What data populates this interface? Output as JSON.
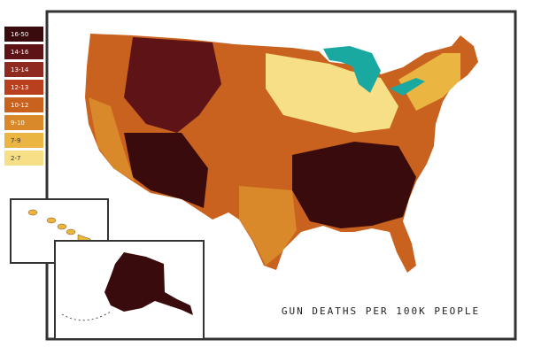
{
  "title": "GUN DEATHS PER 100K PEOPLE",
  "legend": [
    {
      "label": "16-50",
      "color": "#3a0b0c"
    },
    {
      "label": "14-16",
      "color": "#5e1416"
    },
    {
      "label": "13-14",
      "color": "#8e2a1f"
    },
    {
      "label": "12-13",
      "color": "#b8401f"
    },
    {
      "label": "10-12",
      "color": "#c9621f"
    },
    {
      "label": "9-10",
      "color": "#d9892a"
    },
    {
      "label": "7-9",
      "color": "#eab540"
    },
    {
      "label": "2-7",
      "color": "#f6df86"
    }
  ]
}
